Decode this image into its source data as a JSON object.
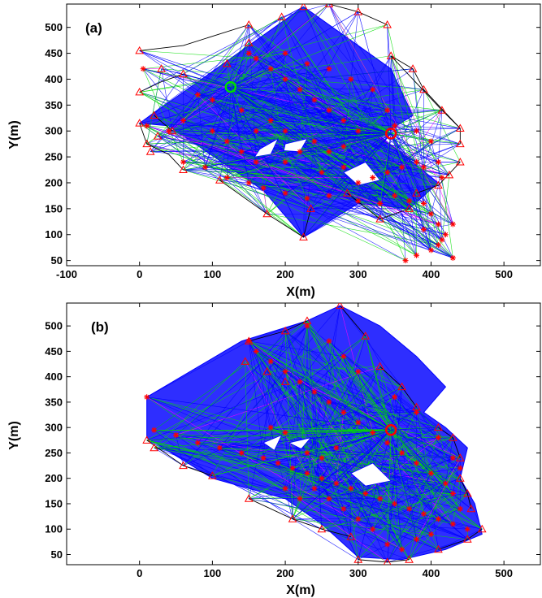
{
  "chart_data": [
    {
      "type": "scatter",
      "panel_label": "(a)",
      "xlabel": "X(m)",
      "ylabel": "Y(m)",
      "xlim": [
        -100,
        550
      ],
      "ylim": [
        40,
        545
      ],
      "xticks": [
        -100,
        0,
        100,
        200,
        300,
        400,
        500
      ],
      "yticks": [
        50,
        100,
        150,
        200,
        250,
        300,
        350,
        400,
        450,
        500
      ],
      "grid": false,
      "colors": {
        "links": "#0000ff",
        "routes": "#00dd00",
        "alt": "#ff00ff",
        "walls": "#000000",
        "marker": "#ff0000"
      },
      "building_outline": [
        [
          0,
          315
        ],
        [
          225,
          540
        ],
        [
          345,
          420
        ],
        [
          375,
          330
        ],
        [
          330,
          290
        ],
        [
          410,
          200
        ],
        [
          370,
          150
        ],
        [
          300,
          160
        ],
        [
          225,
          95
        ],
        [
          170,
          185
        ],
        [
          40,
          310
        ]
      ],
      "hubs": [
        [
          125,
          385
        ],
        [
          345,
          295
        ]
      ],
      "triangles": [
        [
          0,
          455
        ],
        [
          0,
          375
        ],
        [
          20,
          330
        ],
        [
          0,
          315
        ],
        [
          10,
          275
        ],
        [
          15,
          260
        ],
        [
          60,
          225
        ],
        [
          110,
          205
        ],
        [
          175,
          140
        ],
        [
          225,
          95
        ],
        [
          235,
          150
        ],
        [
          285,
          180
        ],
        [
          330,
          130
        ],
        [
          370,
          150
        ],
        [
          380,
          180
        ],
        [
          410,
          195
        ],
        [
          425,
          215
        ],
        [
          440,
          240
        ],
        [
          440,
          275
        ],
        [
          440,
          305
        ],
        [
          415,
          340
        ],
        [
          390,
          380
        ],
        [
          375,
          420
        ],
        [
          345,
          445
        ],
        [
          340,
          505
        ],
        [
          300,
          530
        ],
        [
          260,
          545
        ],
        [
          225,
          540
        ],
        [
          195,
          520
        ],
        [
          150,
          505
        ],
        [
          150,
          470
        ],
        [
          120,
          430
        ],
        [
          60,
          410
        ],
        [
          30,
          420
        ],
        [
          45,
          300
        ],
        [
          25,
          290
        ]
      ],
      "stars": [
        [
          5,
          420
        ],
        [
          10,
          310
        ],
        [
          40,
          300
        ],
        [
          60,
          240
        ],
        [
          90,
          230
        ],
        [
          120,
          210
        ],
        [
          150,
          200
        ],
        [
          170,
          190
        ],
        [
          200,
          180
        ],
        [
          230,
          170
        ],
        [
          260,
          175
        ],
        [
          300,
          165
        ],
        [
          330,
          160
        ],
        [
          350,
          175
        ],
        [
          370,
          165
        ],
        [
          390,
          160
        ],
        [
          400,
          140
        ],
        [
          410,
          120
        ],
        [
          420,
          100
        ],
        [
          410,
          80
        ],
        [
          400,
          70
        ],
        [
          380,
          60
        ],
        [
          365,
          50
        ],
        [
          390,
          110
        ],
        [
          430,
          55
        ],
        [
          430,
          120
        ],
        [
          415,
          90
        ],
        [
          250,
          220
        ],
        [
          280,
          230
        ],
        [
          300,
          200
        ],
        [
          320,
          210
        ],
        [
          340,
          220
        ],
        [
          360,
          230
        ],
        [
          380,
          240
        ],
        [
          300,
          300
        ],
        [
          280,
          320
        ],
        [
          260,
          340
        ],
        [
          240,
          360
        ],
        [
          220,
          380
        ],
        [
          200,
          400
        ],
        [
          180,
          420
        ],
        [
          160,
          440
        ],
        [
          150,
          450
        ],
        [
          200,
          450
        ],
        [
          230,
          430
        ],
        [
          260,
          420
        ],
        [
          290,
          400
        ],
        [
          320,
          380
        ],
        [
          340,
          340
        ],
        [
          350,
          310
        ],
        [
          380,
          300
        ],
        [
          400,
          280
        ],
        [
          390,
          230
        ],
        [
          410,
          240
        ],
        [
          415,
          210
        ],
        [
          240,
          280
        ],
        [
          200,
          300
        ],
        [
          180,
          320
        ],
        [
          160,
          300
        ],
        [
          140,
          340
        ],
        [
          100,
          360
        ],
        [
          80,
          370
        ],
        [
          60,
          320
        ],
        [
          100,
          300
        ],
        [
          120,
          280
        ],
        [
          140,
          260
        ],
        [
          160,
          240
        ],
        [
          200,
          240
        ],
        [
          220,
          260
        ],
        [
          260,
          260
        ],
        [
          280,
          270
        ]
      ],
      "walls": [
        [
          [
            0,
            455
          ],
          [
            60,
            465
          ],
          [
            150,
            505
          ]
        ],
        [
          [
            0,
            375
          ],
          [
            30,
            395
          ],
          [
            60,
            410
          ]
        ],
        [
          [
            20,
            330
          ],
          [
            45,
            300
          ]
        ],
        [
          [
            10,
            275
          ],
          [
            40,
            255
          ],
          [
            60,
            225
          ]
        ],
        [
          [
            110,
            205
          ],
          [
            175,
            140
          ],
          [
            225,
            95
          ],
          [
            235,
            150
          ]
        ],
        [
          [
            285,
            180
          ],
          [
            330,
            130
          ],
          [
            370,
            150
          ]
        ],
        [
          [
            380,
            180
          ],
          [
            410,
            195
          ],
          [
            440,
            240
          ]
        ],
        [
          [
            440,
            275
          ],
          [
            440,
            305
          ],
          [
            415,
            340
          ]
        ],
        [
          [
            390,
            380
          ],
          [
            375,
            420
          ],
          [
            345,
            445
          ]
        ],
        [
          [
            340,
            505
          ],
          [
            300,
            530
          ],
          [
            260,
            545
          ]
        ],
        [
          [
            415,
            340
          ],
          [
            345,
            445
          ]
        ],
        [
          [
            440,
            305
          ],
          [
            390,
            380
          ]
        ],
        [
          [
            0,
            315
          ],
          [
            10,
            275
          ]
        ]
      ]
    },
    {
      "type": "scatter",
      "panel_label": "(b)",
      "xlabel": "X(m)",
      "ylabel": "Y(m)",
      "xlim": [
        -100,
        550
      ],
      "ylim": [
        30,
        545
      ],
      "xticks": [
        0,
        100,
        200,
        300,
        400,
        500
      ],
      "yticks": [
        50,
        100,
        150,
        200,
        250,
        300,
        350,
        400,
        450,
        500
      ],
      "grid": false,
      "colors": {
        "links": "#0000ff",
        "routes": "#00dd00",
        "alt": "#ff00ff",
        "walls": "#000000",
        "marker": "#ff0000"
      },
      "building_outline": [
        [
          10,
          360
        ],
        [
          140,
          470
        ],
        [
          230,
          510
        ],
        [
          275,
          540
        ],
        [
          330,
          500
        ],
        [
          380,
          440
        ],
        [
          420,
          380
        ],
        [
          390,
          330
        ],
        [
          420,
          300
        ],
        [
          450,
          260
        ],
        [
          440,
          200
        ],
        [
          460,
          150
        ],
        [
          470,
          90
        ],
        [
          420,
          60
        ],
        [
          360,
          40
        ],
        [
          300,
          45
        ],
        [
          250,
          110
        ],
        [
          200,
          160
        ],
        [
          100,
          200
        ],
        [
          10,
          280
        ]
      ],
      "hubs": [
        [
          345,
          295
        ]
      ],
      "triangles": [
        [
          10,
          275
        ],
        [
          20,
          260
        ],
        [
          60,
          225
        ],
        [
          100,
          205
        ],
        [
          150,
          160
        ],
        [
          210,
          120
        ],
        [
          250,
          100
        ],
        [
          290,
          85
        ],
        [
          300,
          40
        ],
        [
          340,
          35
        ],
        [
          370,
          40
        ],
        [
          410,
          60
        ],
        [
          450,
          80
        ],
        [
          470,
          100
        ],
        [
          455,
          140
        ],
        [
          450,
          170
        ],
        [
          440,
          200
        ],
        [
          440,
          240
        ],
        [
          430,
          280
        ],
        [
          410,
          300
        ],
        [
          380,
          340
        ],
        [
          360,
          380
        ],
        [
          330,
          420
        ],
        [
          310,
          480
        ],
        [
          275,
          540
        ],
        [
          230,
          510
        ],
        [
          200,
          490
        ],
        [
          150,
          470
        ],
        [
          145,
          430
        ],
        [
          175,
          410
        ],
        [
          200,
          390
        ]
      ],
      "stars": [
        [
          10,
          360
        ],
        [
          20,
          295
        ],
        [
          50,
          285
        ],
        [
          80,
          270
        ],
        [
          110,
          260
        ],
        [
          140,
          250
        ],
        [
          170,
          240
        ],
        [
          190,
          230
        ],
        [
          210,
          220
        ],
        [
          230,
          210
        ],
        [
          250,
          200
        ],
        [
          270,
          190
        ],
        [
          290,
          180
        ],
        [
          310,
          170
        ],
        [
          330,
          160
        ],
        [
          350,
          150
        ],
        [
          370,
          140
        ],
        [
          390,
          130
        ],
        [
          410,
          120
        ],
        [
          430,
          110
        ],
        [
          450,
          100
        ],
        [
          440,
          140
        ],
        [
          430,
          170
        ],
        [
          420,
          190
        ],
        [
          400,
          210
        ],
        [
          380,
          230
        ],
        [
          360,
          250
        ],
        [
          340,
          270
        ],
        [
          320,
          290
        ],
        [
          300,
          310
        ],
        [
          280,
          330
        ],
        [
          260,
          350
        ],
        [
          240,
          370
        ],
        [
          220,
          390
        ],
        [
          200,
          410
        ],
        [
          180,
          430
        ],
        [
          160,
          450
        ],
        [
          150,
          470
        ],
        [
          230,
          500
        ],
        [
          260,
          470
        ],
        [
          280,
          440
        ],
        [
          300,
          410
        ],
        [
          350,
          360
        ],
        [
          380,
          330
        ],
        [
          410,
          280
        ],
        [
          430,
          240
        ],
        [
          440,
          220
        ],
        [
          360,
          60
        ],
        [
          380,
          80
        ],
        [
          400,
          90
        ],
        [
          340,
          70
        ],
        [
          320,
          100
        ],
        [
          300,
          120
        ],
        [
          280,
          140
        ],
        [
          260,
          160
        ],
        [
          240,
          180
        ],
        [
          220,
          160
        ],
        [
          200,
          180
        ],
        [
          230,
          250
        ],
        [
          250,
          240
        ],
        [
          270,
          260
        ],
        [
          200,
          290
        ],
        [
          180,
          300
        ]
      ],
      "walls": [
        [
          [
            10,
            275
          ],
          [
            60,
            225
          ],
          [
            100,
            205
          ]
        ],
        [
          [
            150,
            160
          ],
          [
            210,
            120
          ],
          [
            250,
            100
          ],
          [
            290,
            85
          ]
        ],
        [
          [
            300,
            40
          ],
          [
            340,
            35
          ],
          [
            370,
            40
          ]
        ],
        [
          [
            410,
            60
          ],
          [
            450,
            80
          ],
          [
            470,
            100
          ]
        ],
        [
          [
            455,
            140
          ],
          [
            450,
            170
          ],
          [
            440,
            200
          ]
        ],
        [
          [
            440,
            240
          ],
          [
            430,
            280
          ],
          [
            410,
            300
          ]
        ],
        [
          [
            380,
            340
          ],
          [
            360,
            380
          ],
          [
            330,
            420
          ]
        ],
        [
          [
            310,
            480
          ],
          [
            275,
            540
          ]
        ],
        [
          [
            230,
            510
          ],
          [
            200,
            490
          ],
          [
            150,
            470
          ]
        ]
      ]
    }
  ]
}
